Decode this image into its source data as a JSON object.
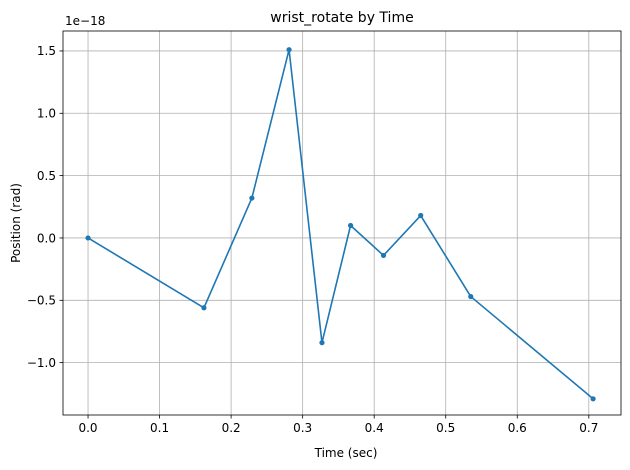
{
  "chart_data": {
    "type": "line",
    "title": "wrist_rotate by Time",
    "xlabel": "Time (sec)",
    "ylabel": "Position (rad)",
    "y_offset_label": "1e−18",
    "xlim": [
      -0.035,
      0.745
    ],
    "ylim": [
      -1.42,
      1.66
    ],
    "xticks": [
      0.0,
      0.1,
      0.2,
      0.3,
      0.4,
      0.5,
      0.6,
      0.7
    ],
    "xtick_labels": [
      "0.0",
      "0.1",
      "0.2",
      "0.3",
      "0.4",
      "0.5",
      "0.6",
      "0.7"
    ],
    "yticks": [
      -1.0,
      -0.5,
      0.0,
      0.5,
      1.0,
      1.5
    ],
    "ytick_labels": [
      "−1.0",
      "−0.5",
      "0.0",
      "0.5",
      "1.0",
      "1.5"
    ],
    "grid": true,
    "line_color": "#1f77b4",
    "series": [
      {
        "x": [
          0.0,
          0.162,
          0.229,
          0.281,
          0.327,
          0.367,
          0.413,
          0.465,
          0.535,
          0.706
        ],
        "y": [
          0.0,
          -0.56,
          0.32,
          1.51,
          -0.84,
          0.1,
          -0.14,
          0.18,
          -0.47,
          -1.29
        ]
      }
    ]
  }
}
